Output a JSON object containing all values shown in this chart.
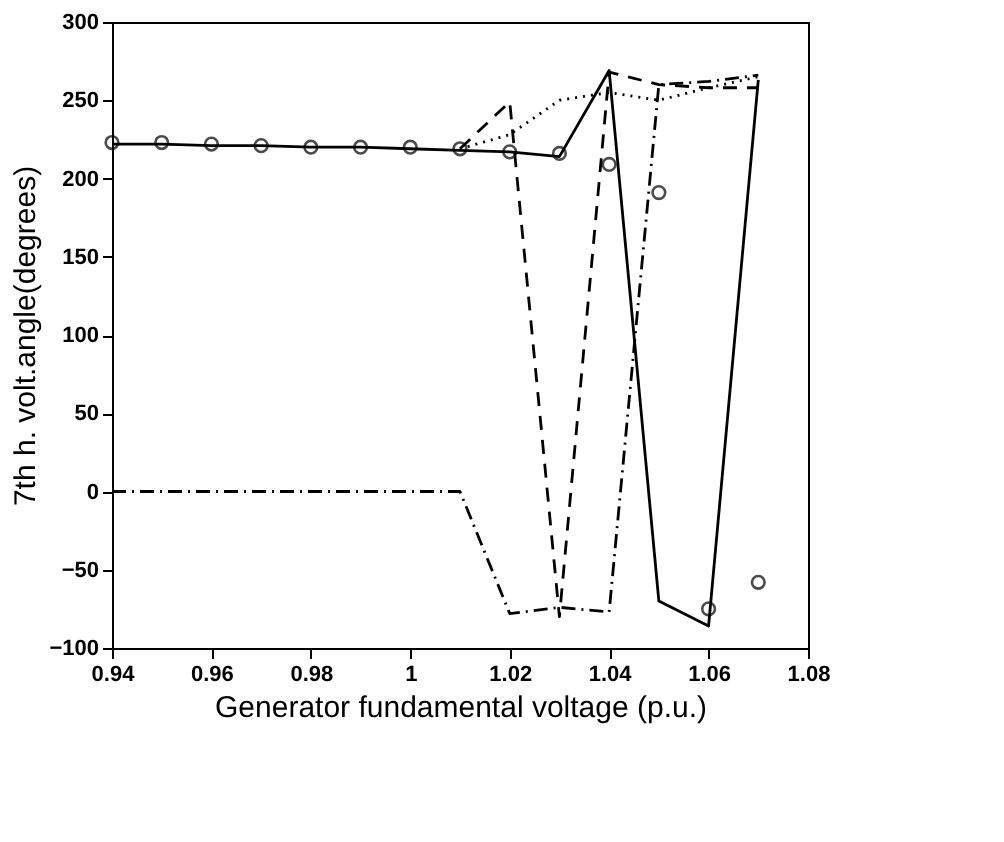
{
  "chart_data": {
    "type": "line",
    "xlabel": "Generator fundamental voltage  (p.u.)",
    "ylabel": "7th h. volt.angle(degrees)",
    "xlim": [
      0.94,
      1.08
    ],
    "xticks": [
      0.94,
      0.96,
      0.98,
      1,
      1.02,
      1.04,
      1.06,
      1.08
    ],
    "ylim": [
      -100,
      300
    ],
    "yticks": [
      -100,
      -50,
      0,
      50,
      100,
      150,
      200,
      250,
      300
    ],
    "grid": false,
    "legend": false,
    "series": [
      {
        "type": "line",
        "color": "#000000",
        "line_style": "solid",
        "marker": "none",
        "x": [
          0.94,
          0.95,
          0.96,
          0.97,
          0.98,
          0.99,
          1.0,
          1.01,
          1.02,
          1.03,
          1.04,
          1.05,
          1.06,
          1.07
        ],
        "values": [
          222,
          222,
          221,
          221,
          220,
          220,
          219,
          218,
          217,
          214,
          269,
          -70,
          -86,
          263
        ]
      },
      {
        "type": "line",
        "color": "#000000",
        "line_style": "dashed",
        "marker": "none",
        "x": [
          1.01,
          1.02,
          1.03,
          1.04,
          1.05,
          1.06,
          1.07
        ],
        "values": [
          219,
          249,
          -80,
          268,
          260,
          258,
          258
        ]
      },
      {
        "type": "line",
        "color": "#000000",
        "line_style": "dotted",
        "marker": "none",
        "x": [
          1.01,
          1.02,
          1.03,
          1.04,
          1.05,
          1.06,
          1.07
        ],
        "values": [
          219,
          228,
          250,
          255,
          250,
          258,
          265
        ]
      },
      {
        "type": "line",
        "color": "#000000",
        "line_style": "dashdot",
        "marker": "none",
        "x": [
          0.94,
          0.95,
          0.96,
          0.97,
          0.98,
          0.99,
          1.0,
          1.01,
          1.02,
          1.03,
          1.04,
          1.05,
          1.06,
          1.07
        ],
        "values": [
          0,
          0,
          0,
          0,
          0,
          0,
          0,
          0,
          -78,
          -74,
          -77,
          260,
          262,
          266
        ]
      },
      {
        "type": "scatter",
        "color": "#000000",
        "marker": "circle",
        "x": [
          0.94,
          0.95,
          0.96,
          0.97,
          0.98,
          0.99,
          1.0,
          1.01,
          1.02,
          1.03,
          1.04,
          1.05,
          1.06,
          1.07
        ],
        "values": [
          223,
          223,
          222,
          221,
          220,
          220,
          220,
          219,
          217,
          216,
          209,
          191,
          -75,
          -58
        ]
      }
    ]
  }
}
